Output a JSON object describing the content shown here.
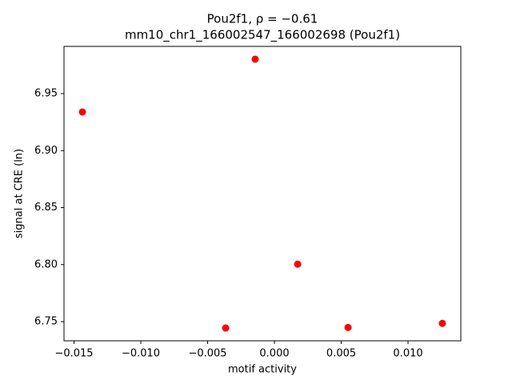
{
  "chart_data": {
    "type": "scatter",
    "title": "Pou2f1, ρ = −0.61",
    "subtitle": "mm10_chr1_166002547_166002698 (Pou2f1)",
    "x_label": "motif activity",
    "y_label": "signal at CRE (ln)",
    "color": "#ff0000",
    "x": [
      -0.01437,
      -0.00144,
      0.00174,
      -0.00365,
      0.00551,
      0.01257
    ],
    "y": [
      6.9339,
      6.9802,
      6.8004,
      6.7444,
      6.7449,
      6.7485
    ],
    "xlim": [
      -0.01575,
      0.01395
    ],
    "ylim": [
      6.7332,
      6.9914
    ],
    "xticks": [
      {
        "value": -0.015,
        "label": "−0.015"
      },
      {
        "value": -0.01,
        "label": "−0.010"
      },
      {
        "value": -0.005,
        "label": "−0.005"
      },
      {
        "value": 0,
        "label": "0.000"
      },
      {
        "value": 0.005,
        "label": "0.005"
      },
      {
        "value": 0.01,
        "label": "0.010"
      }
    ],
    "yticks": [
      6.75,
      {
        "value": 6.8,
        "label": "6.80"
      },
      6.85,
      {
        "value": 6.9,
        "label": "6.90"
      },
      6.95
    ]
  }
}
